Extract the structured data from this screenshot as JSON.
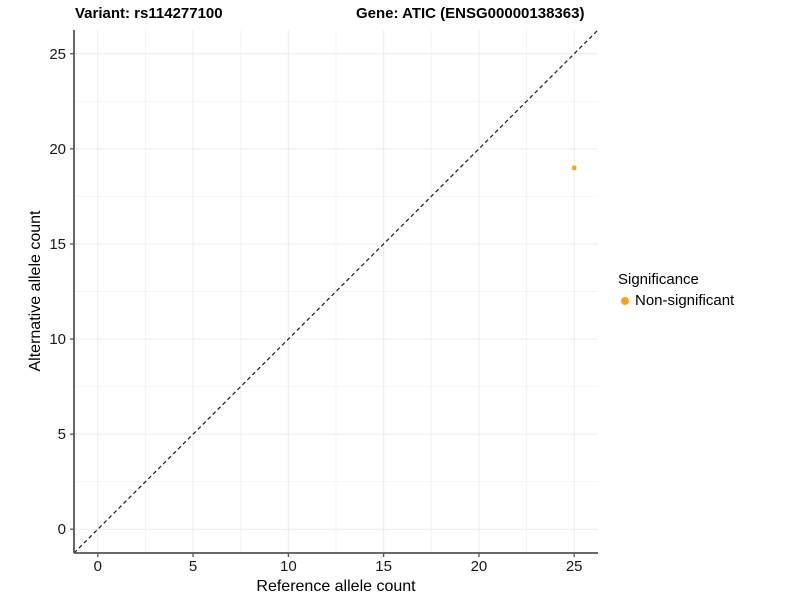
{
  "header": {
    "variant_title": "Variant: rs114277100",
    "gene_title": "Gene: ATIC (ENSG00000138363)"
  },
  "legend": {
    "title": "Significance",
    "items": [
      {
        "label": "Non-significant",
        "color": "#FFA018",
        "marker": "circle"
      }
    ]
  },
  "chart_data": {
    "type": "scatter",
    "title": "Variant: rs114277100   Gene: ATIC (ENSG00000138363)",
    "xlabel": "Reference allele count",
    "ylabel": "Alternative allele count",
    "xlim": [
      -1.25,
      26.25
    ],
    "ylim": [
      -1.25,
      26.25
    ],
    "x_ticks": [
      0,
      5,
      10,
      15,
      20,
      25
    ],
    "y_ticks": [
      0,
      5,
      10,
      15,
      20,
      25
    ],
    "minor_tick_step": 2.5,
    "grid": "on",
    "legend_position": "right",
    "reference_line": {
      "type": "identity y=x",
      "style": "dashed",
      "color": "#1a1a1a"
    },
    "series": [
      {
        "name": "Non-significant",
        "color": "#FFA018",
        "points": [
          {
            "x": 25,
            "y": 19
          }
        ]
      }
    ],
    "colors": {
      "grid_major": "#ececec",
      "grid_minor": "#f4f4f4",
      "axis_line": "#555555",
      "tick_label": "#1a1a1a",
      "background": "#ffffff"
    }
  }
}
